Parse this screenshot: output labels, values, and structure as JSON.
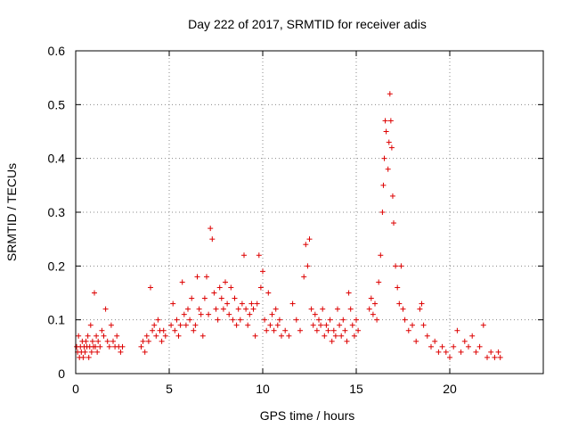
{
  "chart_data": {
    "type": "scatter",
    "title": "Day 222 of 2017, SRMTID for receiver adis",
    "xlabel": "GPS time / hours",
    "ylabel": "SRMTID / TECUs",
    "xlim": [
      0,
      25
    ],
    "ylim": [
      0,
      0.6
    ],
    "x_ticks": [
      0,
      5,
      10,
      15,
      20
    ],
    "x_tick_labels": [
      "0",
      "5",
      "10",
      "15",
      "20"
    ],
    "y_ticks": [
      0,
      0.1,
      0.2,
      0.3,
      0.4,
      0.5,
      0.6
    ],
    "y_tick_labels": [
      "0",
      "0.1",
      "0.2",
      "0.3",
      "0.4",
      "0.5",
      "0.6"
    ],
    "grid": true,
    "marker": "+",
    "color": "#dd0000",
    "series": [
      {
        "name": "SRMTID",
        "points": [
          [
            0.05,
            0.05
          ],
          [
            0.1,
            0.04
          ],
          [
            0.15,
            0.07
          ],
          [
            0.2,
            0.03
          ],
          [
            0.25,
            0.05
          ],
          [
            0.3,
            0.04
          ],
          [
            0.35,
            0.06
          ],
          [
            0.4,
            0.03
          ],
          [
            0.45,
            0.05
          ],
          [
            0.5,
            0.04
          ],
          [
            0.55,
            0.06
          ],
          [
            0.6,
            0.05
          ],
          [
            0.65,
            0.07
          ],
          [
            0.7,
            0.03
          ],
          [
            0.75,
            0.05
          ],
          [
            0.8,
            0.09
          ],
          [
            0.85,
            0.04
          ],
          [
            0.9,
            0.06
          ],
          [
            0.95,
            0.05
          ],
          [
            1.0,
            0.15
          ],
          [
            1.05,
            0.05
          ],
          [
            1.1,
            0.07
          ],
          [
            1.15,
            0.04
          ],
          [
            1.2,
            0.06
          ],
          [
            1.3,
            0.05
          ],
          [
            1.4,
            0.08
          ],
          [
            1.5,
            0.07
          ],
          [
            1.6,
            0.12
          ],
          [
            1.7,
            0.06
          ],
          [
            1.8,
            0.05
          ],
          [
            1.9,
            0.09
          ],
          [
            2.0,
            0.06
          ],
          [
            2.1,
            0.05
          ],
          [
            2.2,
            0.07
          ],
          [
            2.3,
            0.05
          ],
          [
            2.4,
            0.04
          ],
          [
            2.5,
            0.05
          ],
          [
            3.5,
            0.05
          ],
          [
            3.6,
            0.06
          ],
          [
            3.7,
            0.04
          ],
          [
            3.8,
            0.07
          ],
          [
            3.9,
            0.06
          ],
          [
            4.0,
            0.16
          ],
          [
            4.1,
            0.08
          ],
          [
            4.2,
            0.09
          ],
          [
            4.3,
            0.07
          ],
          [
            4.4,
            0.1
          ],
          [
            4.5,
            0.08
          ],
          [
            4.6,
            0.06
          ],
          [
            4.7,
            0.08
          ],
          [
            4.8,
            0.07
          ],
          [
            5.1,
            0.09
          ],
          [
            5.2,
            0.13
          ],
          [
            5.3,
            0.08
          ],
          [
            5.4,
            0.1
          ],
          [
            5.5,
            0.07
          ],
          [
            5.6,
            0.09
          ],
          [
            5.7,
            0.17
          ],
          [
            5.8,
            0.11
          ],
          [
            5.9,
            0.09
          ],
          [
            6.0,
            0.12
          ],
          [
            6.1,
            0.1
          ],
          [
            6.2,
            0.14
          ],
          [
            6.3,
            0.08
          ],
          [
            6.4,
            0.09
          ],
          [
            6.5,
            0.18
          ],
          [
            6.6,
            0.12
          ],
          [
            6.7,
            0.11
          ],
          [
            6.8,
            0.07
          ],
          [
            6.9,
            0.14
          ],
          [
            7.0,
            0.18
          ],
          [
            7.1,
            0.11
          ],
          [
            7.2,
            0.27
          ],
          [
            7.3,
            0.25
          ],
          [
            7.4,
            0.15
          ],
          [
            7.5,
            0.12
          ],
          [
            7.6,
            0.1
          ],
          [
            7.7,
            0.16
          ],
          [
            7.8,
            0.14
          ],
          [
            7.9,
            0.12
          ],
          [
            8.0,
            0.17
          ],
          [
            8.1,
            0.13
          ],
          [
            8.2,
            0.11
          ],
          [
            8.3,
            0.16
          ],
          [
            8.4,
            0.1
          ],
          [
            8.5,
            0.14
          ],
          [
            8.6,
            0.09
          ],
          [
            8.7,
            0.12
          ],
          [
            8.8,
            0.1
          ],
          [
            8.9,
            0.13
          ],
          [
            9.0,
            0.22
          ],
          [
            9.1,
            0.12
          ],
          [
            9.2,
            0.09
          ],
          [
            9.3,
            0.11
          ],
          [
            9.4,
            0.13
          ],
          [
            9.5,
            0.12
          ],
          [
            9.6,
            0.07
          ],
          [
            9.7,
            0.13
          ],
          [
            9.8,
            0.22
          ],
          [
            9.9,
            0.16
          ],
          [
            10.0,
            0.19
          ],
          [
            10.1,
            0.1
          ],
          [
            10.2,
            0.08
          ],
          [
            10.3,
            0.15
          ],
          [
            10.4,
            0.09
          ],
          [
            10.5,
            0.11
          ],
          [
            10.6,
            0.08
          ],
          [
            10.7,
            0.12
          ],
          [
            10.8,
            0.09
          ],
          [
            10.9,
            0.1
          ],
          [
            11.0,
            0.07
          ],
          [
            11.2,
            0.08
          ],
          [
            11.4,
            0.07
          ],
          [
            11.6,
            0.13
          ],
          [
            11.8,
            0.1
          ],
          [
            12.0,
            0.08
          ],
          [
            12.2,
            0.18
          ],
          [
            12.3,
            0.24
          ],
          [
            12.4,
            0.2
          ],
          [
            12.5,
            0.25
          ],
          [
            12.6,
            0.12
          ],
          [
            12.7,
            0.09
          ],
          [
            12.8,
            0.11
          ],
          [
            12.9,
            0.08
          ],
          [
            13.0,
            0.1
          ],
          [
            13.1,
            0.09
          ],
          [
            13.2,
            0.12
          ],
          [
            13.3,
            0.07
          ],
          [
            13.4,
            0.09
          ],
          [
            13.5,
            0.08
          ],
          [
            13.6,
            0.1
          ],
          [
            13.7,
            0.06
          ],
          [
            13.8,
            0.08
          ],
          [
            13.9,
            0.07
          ],
          [
            14.0,
            0.12
          ],
          [
            14.1,
            0.09
          ],
          [
            14.2,
            0.07
          ],
          [
            14.3,
            0.1
          ],
          [
            14.4,
            0.08
          ],
          [
            14.5,
            0.06
          ],
          [
            14.6,
            0.15
          ],
          [
            14.7,
            0.12
          ],
          [
            14.8,
            0.09
          ],
          [
            14.9,
            0.07
          ],
          [
            15.0,
            0.1
          ],
          [
            15.1,
            0.08
          ],
          [
            15.7,
            0.12
          ],
          [
            15.8,
            0.14
          ],
          [
            15.9,
            0.11
          ],
          [
            16.0,
            0.13
          ],
          [
            16.1,
            0.1
          ],
          [
            16.2,
            0.17
          ],
          [
            16.3,
            0.22
          ],
          [
            16.4,
            0.3
          ],
          [
            16.45,
            0.35
          ],
          [
            16.5,
            0.4
          ],
          [
            16.55,
            0.47
          ],
          [
            16.6,
            0.45
          ],
          [
            16.7,
            0.38
          ],
          [
            16.75,
            0.43
          ],
          [
            16.8,
            0.52
          ],
          [
            16.85,
            0.47
          ],
          [
            16.9,
            0.42
          ],
          [
            16.95,
            0.33
          ],
          [
            17.0,
            0.28
          ],
          [
            17.1,
            0.2
          ],
          [
            17.2,
            0.16
          ],
          [
            17.3,
            0.13
          ],
          [
            17.4,
            0.2
          ],
          [
            17.5,
            0.12
          ],
          [
            17.6,
            0.1
          ],
          [
            17.8,
            0.08
          ],
          [
            18.0,
            0.09
          ],
          [
            18.2,
            0.06
          ],
          [
            18.4,
            0.12
          ],
          [
            18.5,
            0.13
          ],
          [
            18.6,
            0.09
          ],
          [
            18.8,
            0.07
          ],
          [
            19.0,
            0.05
          ],
          [
            19.2,
            0.06
          ],
          [
            19.4,
            0.04
          ],
          [
            19.6,
            0.05
          ],
          [
            19.8,
            0.04
          ],
          [
            20.0,
            0.03
          ],
          [
            20.2,
            0.05
          ],
          [
            20.4,
            0.08
          ],
          [
            20.6,
            0.04
          ],
          [
            20.8,
            0.06
          ],
          [
            21.0,
            0.05
          ],
          [
            21.2,
            0.07
          ],
          [
            21.4,
            0.04
          ],
          [
            21.6,
            0.05
          ],
          [
            21.8,
            0.09
          ],
          [
            22.0,
            0.03
          ],
          [
            22.2,
            0.04
          ],
          [
            22.4,
            0.03
          ],
          [
            22.6,
            0.04
          ],
          [
            22.7,
            0.03
          ]
        ]
      }
    ]
  }
}
